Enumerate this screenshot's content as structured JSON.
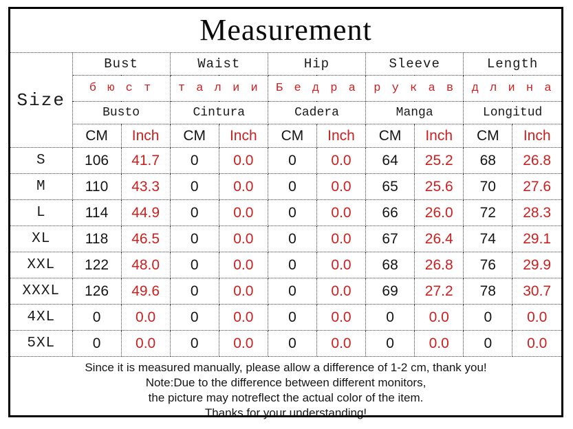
{
  "title": "Measurement",
  "colors": {
    "accent_red": "#cc2020",
    "text_black": "#141414",
    "border": "#3a3a3a"
  },
  "table": {
    "size_header": "Size",
    "unit_cm": "CM",
    "unit_inch": "Inch",
    "groups": [
      {
        "en": "Bust",
        "ru": "б ю с т",
        "es": "Busto"
      },
      {
        "en": "Waist",
        "ru": "т а л и и",
        "es": "Cintura"
      },
      {
        "en": "Hip",
        "ru": "Б е д р а",
        "es": "Cadera"
      },
      {
        "en": "Sleeve",
        "ru": "р у к а в",
        "es": "Manga"
      },
      {
        "en": "Length",
        "ru": "д л и н а",
        "es": "Longitud"
      }
    ],
    "rows": [
      {
        "size": "S",
        "values": [
          "106",
          "41.7",
          "0",
          "0.0",
          "0",
          "0.0",
          "64",
          "25.2",
          "68",
          "26.8"
        ]
      },
      {
        "size": "M",
        "values": [
          "110",
          "43.3",
          "0",
          "0.0",
          "0",
          "0.0",
          "65",
          "25.6",
          "70",
          "27.6"
        ]
      },
      {
        "size": "L",
        "values": [
          "114",
          "44.9",
          "0",
          "0.0",
          "0",
          "0.0",
          "66",
          "26.0",
          "72",
          "28.3"
        ]
      },
      {
        "size": "XL",
        "values": [
          "118",
          "46.5",
          "0",
          "0.0",
          "0",
          "0.0",
          "67",
          "26.4",
          "74",
          "29.1"
        ]
      },
      {
        "size": "XXL",
        "values": [
          "122",
          "48.0",
          "0",
          "0.0",
          "0",
          "0.0",
          "68",
          "26.8",
          "76",
          "29.9"
        ]
      },
      {
        "size": "XXXL",
        "values": [
          "126",
          "49.6",
          "0",
          "0.0",
          "0",
          "0.0",
          "69",
          "27.2",
          "78",
          "30.7"
        ]
      },
      {
        "size": "4XL",
        "values": [
          "0",
          "0.0",
          "0",
          "0.0",
          "0",
          "0.0",
          "0",
          "0.0",
          "0",
          "0.0"
        ]
      },
      {
        "size": "5XL",
        "values": [
          "0",
          "0.0",
          "0",
          "0.0",
          "0",
          "0.0",
          "0",
          "0.0",
          "0",
          "0.0"
        ]
      }
    ]
  },
  "notes": [
    "Since it is measured manually, please allow a difference of 1-2 cm, thank you!",
    "Note:Due to the difference between different monitors,",
    "the picture may notreflect the actual color of the item.",
    "Thanks for your understanding!"
  ]
}
